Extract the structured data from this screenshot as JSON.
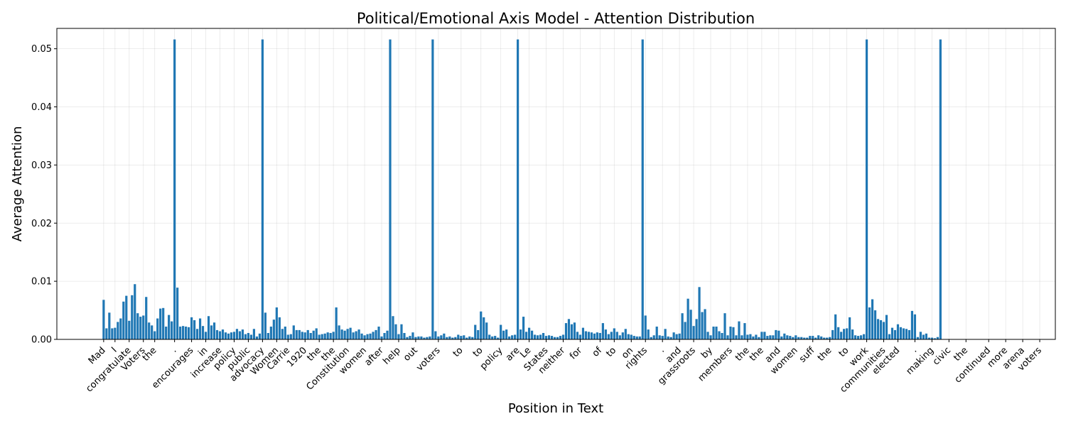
{
  "chart_data": {
    "type": "bar",
    "title": "Political/Emotional Axis Model - Attention Distribution",
    "xlabel": "Position in Text",
    "ylabel": "Average Attention",
    "ylim": [
      0,
      0.0535
    ],
    "xlim": [
      -16.5,
      335.5
    ],
    "yticks": [
      0.0,
      0.01,
      0.02,
      0.03,
      0.04,
      0.05
    ],
    "ytick_labels": [
      "0.00",
      "0.01",
      "0.02",
      "0.03",
      "0.04",
      "0.05"
    ],
    "grid": true,
    "legend": "none",
    "bar_color": "#1f77b4",
    "xtick_positions": [
      0,
      4,
      9,
      14,
      18,
      25,
      31,
      36,
      41,
      46,
      51,
      56,
      61,
      65,
      71,
      76,
      81,
      86,
      92,
      98,
      104,
      110,
      118,
      126,
      133,
      140,
      146,
      150,
      156,
      162,
      168,
      175,
      180,
      186,
      191,
      197,
      203,
      208,
      214,
      221,
      227,
      232,
      238,
      244,
      250,
      256,
      262,
      269,
      275,
      280,
      286,
      292,
      298,
      304,
      312,
      318,
      324,
      330
    ],
    "xtick_labels": [
      "Mad",
      "I",
      "congratulate",
      "Voters",
      "the",
      ".",
      "encourages",
      "in",
      "increase",
      "policy",
      "public",
      "advocacy",
      "Women",
      "Carrie",
      "1920",
      "the",
      "the",
      "Constitution",
      "women",
      "after",
      "help",
      "out",
      "voters",
      "to",
      "to",
      "policy",
      "are",
      "Le",
      "States",
      "neither",
      "for",
      "of",
      "to",
      "on",
      "rights",
      ".",
      "and",
      "grassroots",
      "by",
      "members",
      "the",
      "the",
      "and",
      "women",
      "suff",
      "the",
      "to",
      "work",
      "communities",
      "elected",
      ".",
      "making",
      "civic",
      "the",
      "continued",
      "more",
      "arena",
      "voters"
    ],
    "values": [
      0.0068,
      0.0019,
      0.0046,
      0.0019,
      0.002,
      0.003,
      0.0036,
      0.0065,
      0.0075,
      0.0032,
      0.0076,
      0.0095,
      0.0045,
      0.0039,
      0.0041,
      0.0073,
      0.0029,
      0.0024,
      0.0014,
      0.0036,
      0.0053,
      0.0054,
      0.0022,
      0.0042,
      0.0031,
      0.0516,
      0.0089,
      0.0022,
      0.0023,
      0.0022,
      0.0021,
      0.0038,
      0.0033,
      0.0018,
      0.0036,
      0.0023,
      0.0013,
      0.004,
      0.0024,
      0.0029,
      0.0016,
      0.0014,
      0.0017,
      0.0012,
      0.001,
      0.0012,
      0.0013,
      0.0018,
      0.0014,
      0.0017,
      0.0009,
      0.0011,
      0.0008,
      0.0018,
      0.0005,
      0.001,
      0.0516,
      0.0046,
      0.0011,
      0.0022,
      0.0034,
      0.0055,
      0.0038,
      0.0018,
      0.0022,
      0.0008,
      0.0009,
      0.0024,
      0.0016,
      0.0016,
      0.0013,
      0.0012,
      0.0016,
      0.0011,
      0.0015,
      0.0019,
      0.0008,
      0.0009,
      0.001,
      0.0012,
      0.0011,
      0.0013,
      0.0055,
      0.0024,
      0.0017,
      0.0015,
      0.0018,
      0.002,
      0.0012,
      0.0014,
      0.0017,
      0.001,
      0.0007,
      0.0009,
      0.001,
      0.0013,
      0.0016,
      0.0022,
      0.0005,
      0.0011,
      0.0015,
      0.0516,
      0.004,
      0.0026,
      0.0009,
      0.0026,
      0.0011,
      0.0004,
      0.0006,
      0.0012,
      0.0004,
      0.0005,
      0.0005,
      0.0003,
      0.0004,
      0.0005,
      0.0516,
      0.0014,
      0.0005,
      0.0007,
      0.001,
      0.0004,
      0.0005,
      0.0003,
      0.0004,
      0.0008,
      0.0006,
      0.0007,
      0.0003,
      0.0005,
      0.0004,
      0.0025,
      0.0016,
      0.0048,
      0.0038,
      0.0029,
      0.0008,
      0.0005,
      0.0006,
      0.0003,
      0.0025,
      0.0015,
      0.0017,
      0.0005,
      0.0007,
      0.0008,
      0.0516,
      0.0017,
      0.0039,
      0.0013,
      0.002,
      0.0015,
      0.0008,
      0.0007,
      0.0008,
      0.0011,
      0.0006,
      0.0007,
      0.0006,
      0.0004,
      0.0004,
      0.0006,
      0.0008,
      0.0028,
      0.0035,
      0.0026,
      0.0029,
      0.0013,
      0.0008,
      0.002,
      0.0014,
      0.0013,
      0.0012,
      0.001,
      0.0012,
      0.0011,
      0.0028,
      0.0017,
      0.0009,
      0.0013,
      0.0019,
      0.0013,
      0.0007,
      0.0012,
      0.0018,
      0.0009,
      0.0008,
      0.0006,
      0.0005,
      0.0005,
      0.0516,
      0.0041,
      0.0017,
      0.0004,
      0.0007,
      0.0022,
      0.0007,
      0.0006,
      0.0018,
      0.0005,
      0.0004,
      0.0012,
      0.0009,
      0.001,
      0.0045,
      0.003,
      0.007,
      0.0051,
      0.0023,
      0.0035,
      0.009,
      0.0047,
      0.0052,
      0.0013,
      0.0007,
      0.0022,
      0.0022,
      0.0014,
      0.0011,
      0.0045,
      0.0007,
      0.0022,
      0.0021,
      0.0007,
      0.0031,
      0.0007,
      0.0028,
      0.0008,
      0.0009,
      0.0005,
      0.0008,
      0.0004,
      0.0013,
      0.0013,
      0.0006,
      0.0007,
      0.0007,
      0.0016,
      0.0015,
      0.0005,
      0.001,
      0.0007,
      0.0006,
      0.0004,
      0.0007,
      0.0004,
      0.0004,
      0.0003,
      0.0003,
      0.0006,
      0.0006,
      0.0003,
      0.0007,
      0.0005,
      0.0003,
      0.0003,
      0.0004,
      0.0016,
      0.0043,
      0.0021,
      0.0013,
      0.0018,
      0.0019,
      0.0038,
      0.0017,
      0.0007,
      0.0006,
      0.0007,
      0.0009,
      0.0516,
      0.0055,
      0.0069,
      0.005,
      0.0035,
      0.0033,
      0.003,
      0.0042,
      0.0009,
      0.002,
      0.0016,
      0.0026,
      0.0021,
      0.0019,
      0.0018,
      0.0016,
      0.0049,
      0.0043,
      0.0004,
      0.0013,
      0.0008,
      0.001,
      0.0003,
      0.0003,
      0.0002,
      0.0004,
      0.0516
    ]
  }
}
